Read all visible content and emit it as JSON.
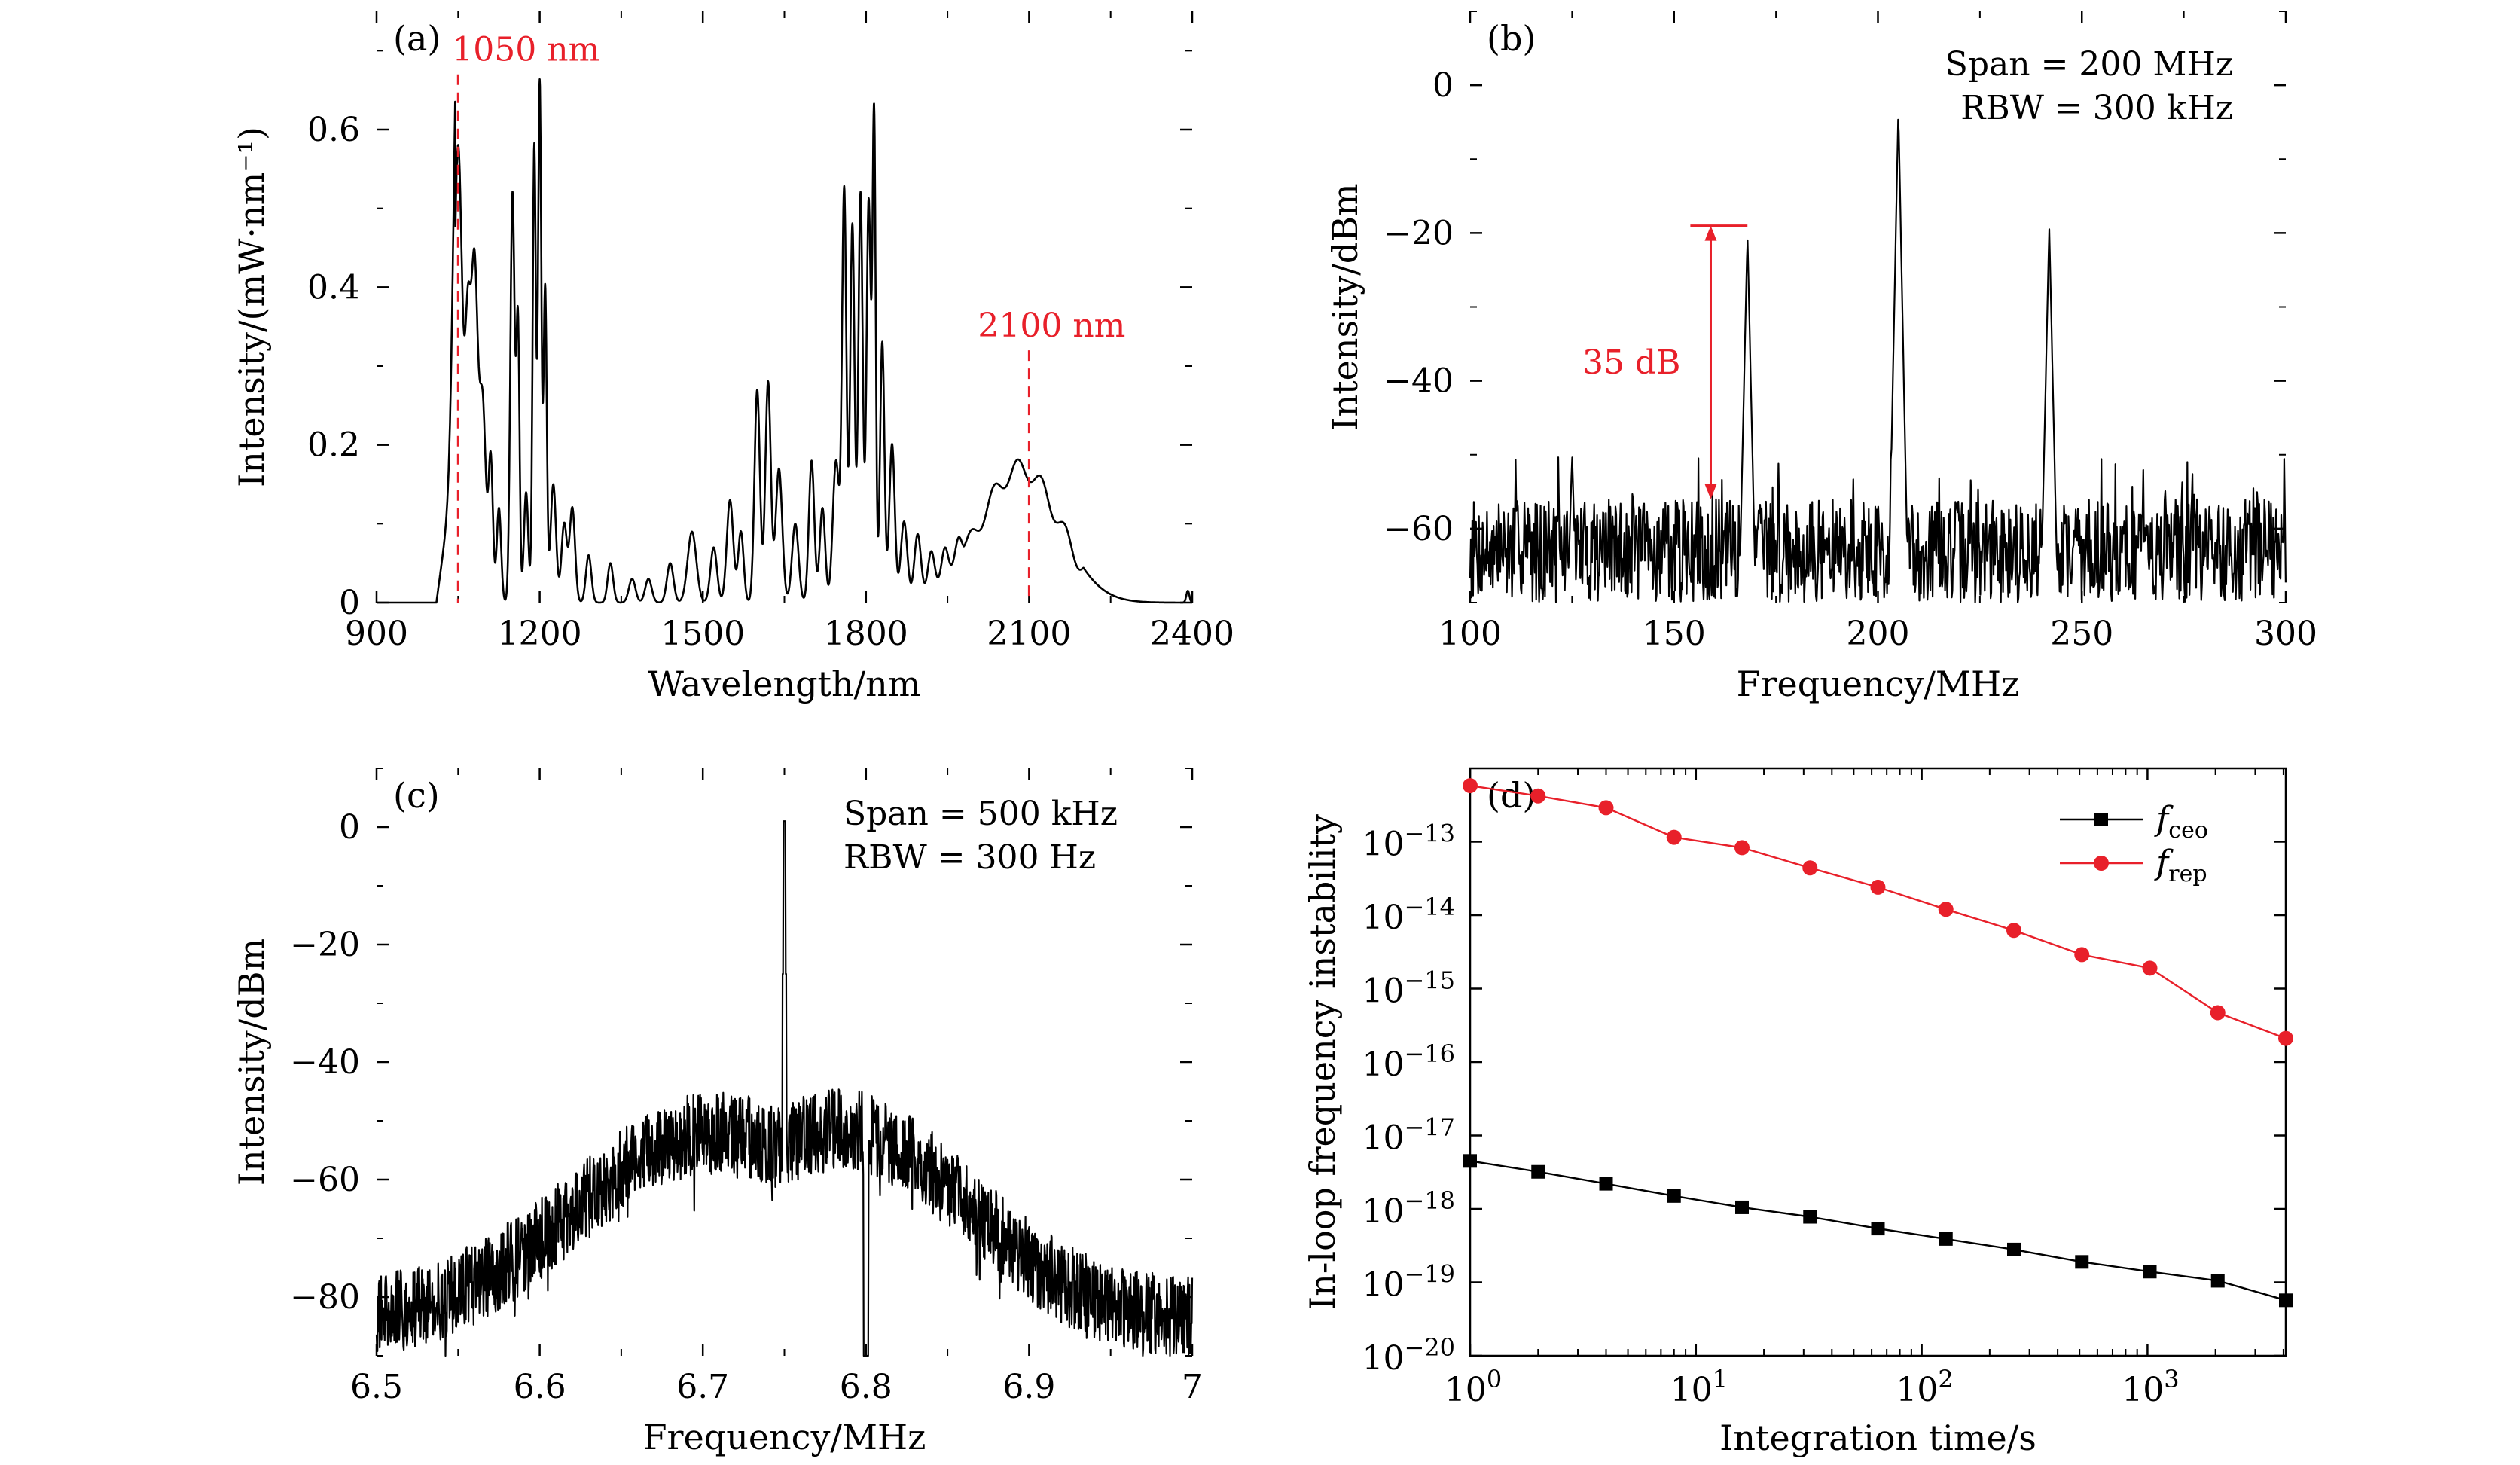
{
  "figure": {
    "panels": [
      "(a)",
      "(b)",
      "(c)",
      "(d)"
    ]
  },
  "chart_data": [
    {
      "id": "a",
      "type": "line",
      "panel_label": "(a)",
      "xlabel": "Wavelength/nm",
      "ylabel": "Intensity/(mW·nm⁻¹)",
      "xlim": [
        900,
        2400
      ],
      "ylim": [
        0,
        0.75
      ],
      "xticks": [
        900,
        1200,
        1500,
        1800,
        2100,
        2400
      ],
      "yticks": [
        0,
        0.2,
        0.4,
        0.6
      ],
      "ytick_labels": [
        "0",
        "0.2",
        "0.4",
        "0.6"
      ],
      "annotations": [
        {
          "text": "1050 nm",
          "x": 1050,
          "color": "#e8202a",
          "marker_top": 0.67
        },
        {
          "text": "2100 nm",
          "x": 2100,
          "color": "#e8202a",
          "marker_top": 0.32
        }
      ],
      "peaks": [
        [
          1050,
          0.58,
          8
        ],
        [
          1068,
          0.3,
          5
        ],
        [
          1080,
          0.42,
          6
        ],
        [
          1095,
          0.25,
          6
        ],
        [
          1110,
          0.18,
          4
        ],
        [
          1125,
          0.12,
          4
        ],
        [
          1150,
          0.52,
          4
        ],
        [
          1160,
          0.35,
          3
        ],
        [
          1175,
          0.14,
          4
        ],
        [
          1190,
          0.58,
          3
        ],
        [
          1200,
          0.66,
          3
        ],
        [
          1210,
          0.4,
          3
        ],
        [
          1225,
          0.15,
          5
        ],
        [
          1245,
          0.1,
          5
        ],
        [
          1260,
          0.12,
          5
        ],
        [
          1290,
          0.06,
          5
        ],
        [
          1330,
          0.05,
          5
        ],
        [
          1370,
          0.03,
          6
        ],
        [
          1400,
          0.03,
          6
        ],
        [
          1440,
          0.05,
          6
        ],
        [
          1480,
          0.09,
          8
        ],
        [
          1520,
          0.07,
          6
        ],
        [
          1550,
          0.13,
          6
        ],
        [
          1570,
          0.09,
          5
        ],
        [
          1600,
          0.27,
          5
        ],
        [
          1620,
          0.28,
          5
        ],
        [
          1640,
          0.17,
          6
        ],
        [
          1670,
          0.1,
          6
        ],
        [
          1700,
          0.18,
          5
        ],
        [
          1720,
          0.12,
          5
        ],
        [
          1745,
          0.18,
          6
        ],
        [
          1760,
          0.52,
          4
        ],
        [
          1775,
          0.48,
          4
        ],
        [
          1790,
          0.52,
          4
        ],
        [
          1805,
          0.51,
          4
        ],
        [
          1815,
          0.61,
          3
        ],
        [
          1830,
          0.33,
          4
        ],
        [
          1848,
          0.2,
          5
        ],
        [
          1870,
          0.1,
          6
        ],
        [
          1895,
          0.08,
          6
        ],
        [
          1920,
          0.05,
          6
        ],
        [
          1945,
          0.04,
          6
        ],
        [
          1970,
          0.03,
          6
        ]
      ],
      "broad_peak": {
        "center": 2085,
        "height": 0.17,
        "width_left": 75,
        "width_right": 70
      },
      "onset_nm": 1020
    },
    {
      "id": "b",
      "type": "line",
      "panel_label": "(b)",
      "xlabel": "Frequency/MHz",
      "ylabel": "Intensity/dBm",
      "xlim": [
        100,
        300
      ],
      "ylim": [
        -70,
        10
      ],
      "xticks": [
        100,
        150,
        200,
        250,
        300
      ],
      "yticks": [
        0,
        -20,
        -40,
        -60
      ],
      "ytick_labels": [
        "0",
        "−20",
        "−40",
        "−60"
      ],
      "notes": [
        "Span = 200 MHz",
        "RBW = 300 kHz"
      ],
      "noise_floor_dbm": -63,
      "peaks": [
        [
          168,
          -20,
          0.9
        ],
        [
          205,
          -3,
          0.8
        ],
        [
          242,
          -19,
          0.9
        ],
        [
          125,
          -50,
          1.2
        ]
      ],
      "annotation": {
        "text": "35 dB",
        "x": 159,
        "y_top": -19,
        "y_bottom": -56,
        "bar_x_end": 168,
        "color": "#e8202a"
      }
    },
    {
      "id": "c",
      "type": "line",
      "panel_label": "(c)",
      "xlabel": "Frequency/MHz",
      "ylabel": "Intensity/dBm",
      "xlim": [
        6.5,
        7.0
      ],
      "ylim": [
        -90,
        10
      ],
      "xticks": [
        6.5,
        6.6,
        6.7,
        6.8,
        6.9,
        7.0
      ],
      "yticks": [
        0,
        -20,
        -40,
        -60,
        -80
      ],
      "ytick_labels": [
        "0",
        "−20",
        "−40",
        "−60",
        "−80"
      ],
      "notes": [
        "Span = 500 kHz",
        "RBW = 300 Hz"
      ],
      "center_peak": {
        "x": 6.75,
        "y": 1
      },
      "hump_centers": [
        6.69,
        6.8
      ]
    },
    {
      "id": "d",
      "type": "scatter",
      "panel_label": "(d)",
      "xlabel": "Integration time/s",
      "ylabel": "In-loop frequency instability",
      "xscale": "log",
      "yscale": "log",
      "xlim": [
        1,
        4096
      ],
      "ylim": [
        1e-20,
        1e-12
      ],
      "xticks": [
        1,
        10,
        100,
        1000
      ],
      "yticks": [
        1e-20,
        1e-19,
        1e-18,
        1e-17,
        1e-16,
        1e-15,
        1e-14,
        1e-13
      ],
      "legend_position": "top-right",
      "x": [
        1,
        2,
        4,
        8,
        16,
        32,
        64,
        128,
        256,
        512,
        1024,
        2048,
        4096
      ],
      "series": [
        {
          "name": "ceo",
          "color": "#000000",
          "marker": "square",
          "values": [
            4.5e-18,
            3.2e-18,
            2.2e-18,
            1.5e-18,
            1.05e-18,
            7.8e-19,
            5.4e-19,
            3.9e-19,
            2.8e-19,
            1.9e-19,
            1.4e-19,
            1.05e-19,
            5.7e-20
          ]
        },
        {
          "name": "rep",
          "color": "#e8202a",
          "marker": "circle",
          "values": [
            5.8e-13,
            4.2e-13,
            2.9e-13,
            1.15e-13,
            8.3e-14,
            4.4e-14,
            2.4e-14,
            1.2e-14,
            6.2e-15,
            2.9e-15,
            1.9e-15,
            4.7e-16,
            2.1e-16
          ]
        }
      ]
    }
  ]
}
